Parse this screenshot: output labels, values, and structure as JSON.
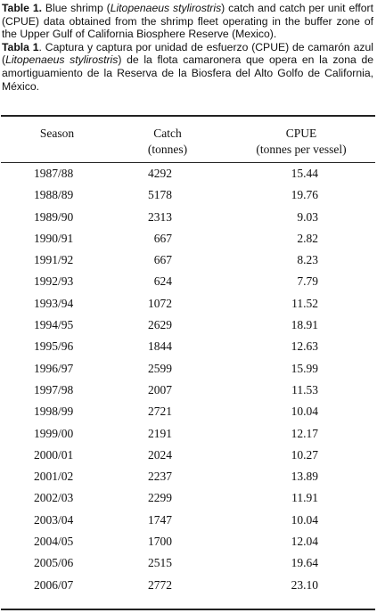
{
  "caption_en": {
    "label": "Table 1.",
    "text_before": " Blue shrimp (",
    "species": "Litopenaeus stylirostris",
    "text_after": ") catch and catch per unit effort (CPUE) data obtained from the shrimp fleet operating in the buffer zone of the Upper Gulf of California Biosphere Reserve (Mexico)."
  },
  "caption_es": {
    "label": "Tabla 1",
    "text_before": ". Captura y captura por unidad de esfuerzo (CPUE) de camarón azul (",
    "species": "Litopenaeus stylirostris",
    "text_after": ") de la flota camaronera que opera en la zona de amortiguamiento de la Reserva de la Biosfera del Alto Golfo de California, México."
  },
  "table": {
    "headers": {
      "season": "Season",
      "catch_line1": "Catch",
      "catch_line2": "(tonnes)",
      "cpue_line1": "CPUE",
      "cpue_line2": "(tonnes per vessel)"
    },
    "rows": [
      {
        "season": "1987/88",
        "catch": "4292",
        "cpue": "15.44"
      },
      {
        "season": "1988/89",
        "catch": "5178",
        "cpue": "19.76"
      },
      {
        "season": "1989/90",
        "catch": "2313",
        "cpue": "9.03"
      },
      {
        "season": "1990/91",
        "catch": "667",
        "cpue": "2.82"
      },
      {
        "season": "1991/92",
        "catch": "667",
        "cpue": "8.23"
      },
      {
        "season": "1992/93",
        "catch": "624",
        "cpue": "7.79"
      },
      {
        "season": "1993/94",
        "catch": "1072",
        "cpue": "11.52"
      },
      {
        "season": "1994/95",
        "catch": "2629",
        "cpue": "18.91"
      },
      {
        "season": "1995/96",
        "catch": "1844",
        "cpue": "12.63"
      },
      {
        "season": "1996/97",
        "catch": "2599",
        "cpue": "15.99"
      },
      {
        "season": "1997/98",
        "catch": "2007",
        "cpue": "11.53"
      },
      {
        "season": "1998/99",
        "catch": "2721",
        "cpue": "10.04"
      },
      {
        "season": "1999/00",
        "catch": "2191",
        "cpue": "12.17"
      },
      {
        "season": "2000/01",
        "catch": "2024",
        "cpue": "10.27"
      },
      {
        "season": "2001/02",
        "catch": "2237",
        "cpue": "13.89"
      },
      {
        "season": "2002/03",
        "catch": "2299",
        "cpue": "11.91"
      },
      {
        "season": "2003/04",
        "catch": "1747",
        "cpue": "10.04"
      },
      {
        "season": "2004/05",
        "catch": "1700",
        "cpue": "12.04"
      },
      {
        "season": "2005/06",
        "catch": "2515",
        "cpue": "19.64"
      },
      {
        "season": "2006/07",
        "catch": "2772",
        "cpue": "23.10"
      }
    ]
  }
}
